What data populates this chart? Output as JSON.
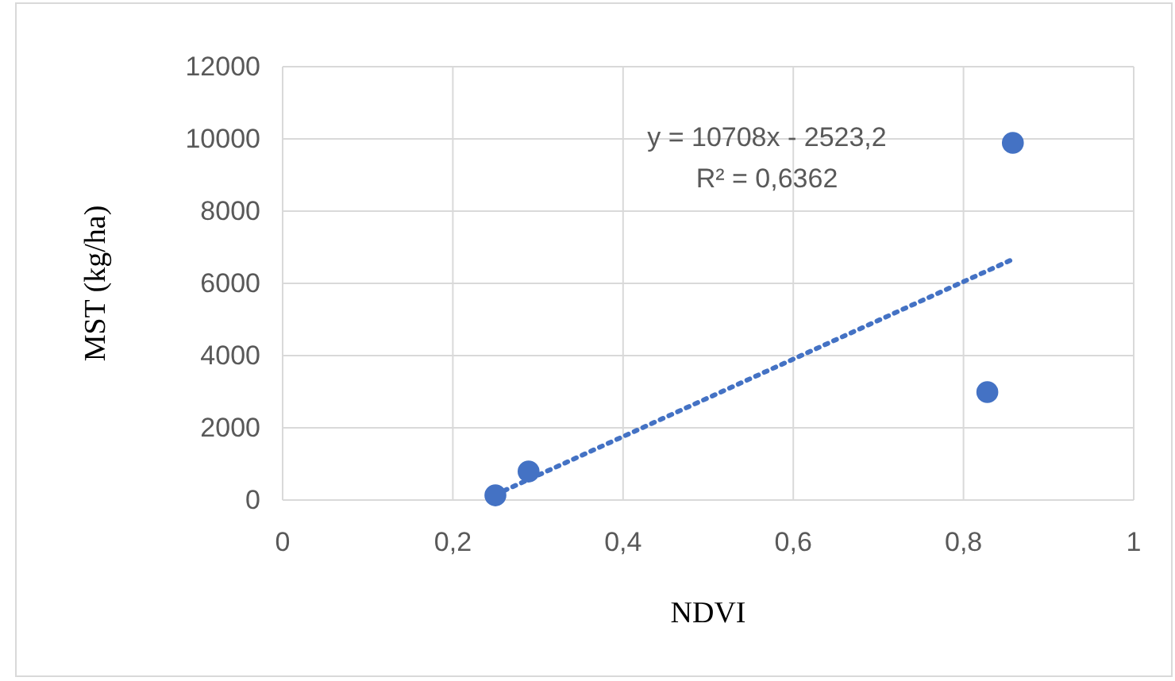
{
  "chart_data": {
    "type": "scatter",
    "xlabel": "NDVI",
    "ylabel": "MST (kg/ha)",
    "annotations": [
      "y = 10708x - 2523,2",
      "R² = 0,6362"
    ],
    "series": [
      {
        "color": "#4472c4",
        "x": [
          0.25,
          0.289,
          0.828,
          0.858
        ],
        "values": [
          130,
          790,
          2990,
          9890
        ],
        "marker": "circle"
      },
      {
        "type": "line",
        "color": "#4472c4",
        "x": [
          0.25,
          0.86
        ],
        "values": [
          150,
          6690
        ],
        "line_style": "dotted",
        "marker": "none"
      }
    ],
    "xlim": [
      0,
      1
    ],
    "ylim": [
      0,
      12000
    ],
    "xticks": [
      0,
      {
        "value": 0.2,
        "label": "0,2"
      },
      {
        "value": 0.4,
        "label": "0,4"
      },
      {
        "value": 0.6,
        "label": "0,6"
      },
      {
        "value": 0.8,
        "label": "0,8"
      },
      1
    ],
    "yticks": [
      0,
      2000,
      4000,
      6000,
      8000,
      10000,
      12000
    ],
    "grid": true
  }
}
